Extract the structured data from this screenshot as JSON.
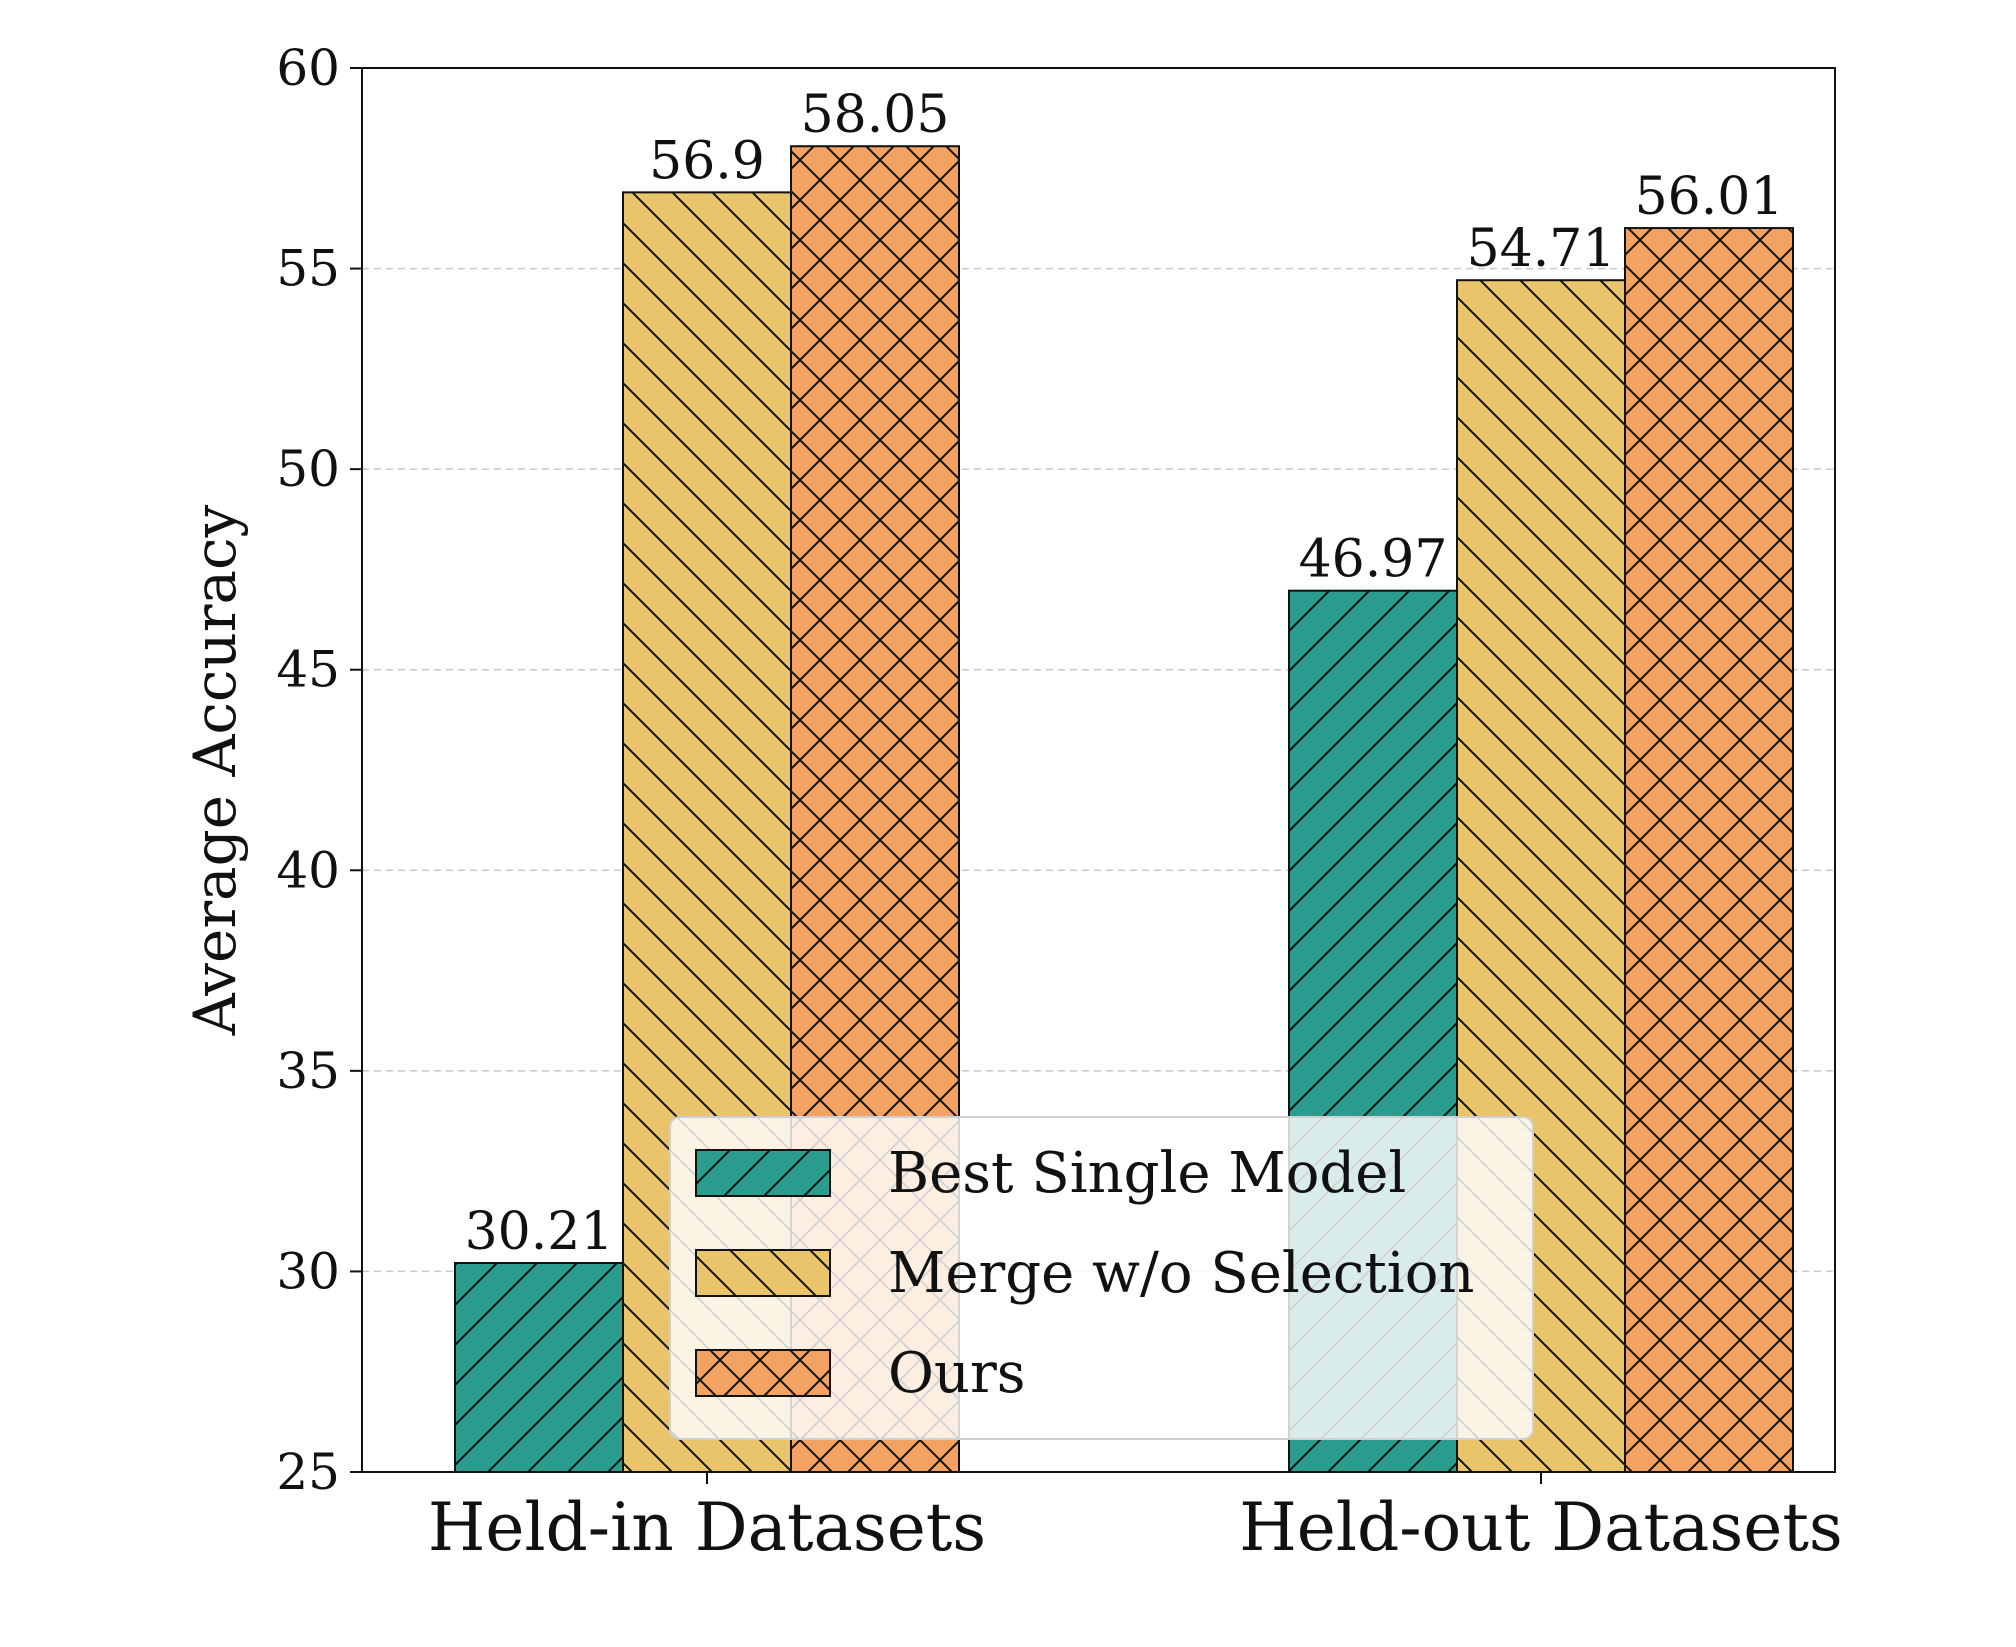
{
  "chart_data": {
    "type": "bar",
    "categories": [
      "Held-in Datasets",
      "Held-out Datasets"
    ],
    "series": [
      {
        "name": "Best Single Model",
        "values": [
          30.21,
          46.97
        ],
        "color": "#2a9d8f",
        "hatch": "diagonal-forward"
      },
      {
        "name": "Merge w/o Selection",
        "values": [
          56.9,
          54.71
        ],
        "color": "#e9c46a",
        "hatch": "diagonal-back"
      },
      {
        "name": "Ours",
        "values": [
          58.05,
          56.01
        ],
        "color": "#f4a261",
        "hatch": "cross"
      }
    ],
    "data_labels": [
      [
        "30.21",
        "46.97"
      ],
      [
        "56.9",
        "54.71"
      ],
      [
        "58.05",
        "56.01"
      ]
    ],
    "title": "",
    "xlabel": "",
    "ylabel": "Average Accuracy",
    "ylim": [
      25,
      60
    ],
    "yticks": [
      "25",
      "30",
      "35",
      "40",
      "45",
      "50",
      "55",
      "60"
    ],
    "grid": "horizontal-dashed",
    "legend_position": "lower-center"
  }
}
